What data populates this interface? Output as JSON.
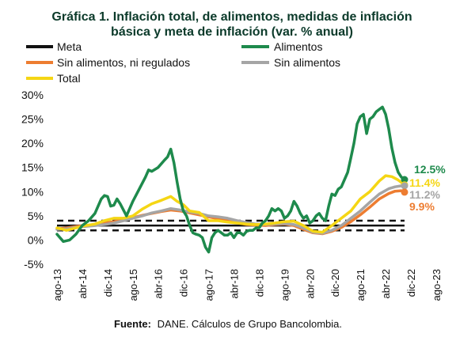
{
  "chart_data": {
    "type": "line",
    "title_line1": "Gráfica 1. Inflación total, de alimentos, medidas de inflación",
    "title_line2": "básica y meta de inflación (var. % anual)",
    "source_bold": "Fuente:",
    "source_text": "DANE. Cálculos de Grupo Bancolombia.",
    "ylim": [
      -5,
      30
    ],
    "y_ticks": [
      -5,
      0,
      5,
      10,
      15,
      20,
      25,
      30
    ],
    "y_tick_labels": [
      "-5%",
      "0%",
      "5%",
      "10%",
      "15%",
      "20%",
      "25%",
      "30%"
    ],
    "x_tick_labels": [
      "ago-13",
      "abr-14",
      "dic-14",
      "ago-15",
      "abr-16",
      "dic-16",
      "ago-17",
      "abr-18",
      "dic-18",
      "ago-19",
      "abr-20",
      "dic-20",
      "ago-21",
      "abr-22",
      "dic-22",
      "ago-23"
    ],
    "target_band": {
      "center": 3,
      "lower": 2,
      "upper": 4
    },
    "legend": [
      {
        "key": "meta",
        "label": "Meta"
      },
      {
        "key": "alimentos",
        "label": "Alimentos"
      },
      {
        "key": "sin_alim_reg",
        "label": "Sin alimentos, ni regulados"
      },
      {
        "key": "sin_alim",
        "label": "Sin alimentos"
      },
      {
        "key": "total",
        "label": "Total"
      }
    ],
    "series": [
      {
        "key": "alimentos",
        "name": "Alimentos",
        "color": "#1e8a4c",
        "end_label": "12.5%",
        "values": [
          [
            0,
            1.2
          ],
          [
            2,
            -0.3
          ],
          [
            4,
            0.0
          ],
          [
            6,
            1.2
          ],
          [
            8,
            3.0
          ],
          [
            10,
            4.0
          ],
          [
            12,
            5.5
          ],
          [
            14,
            8.5
          ],
          [
            15,
            9.2
          ],
          [
            16,
            9.0
          ],
          [
            17,
            7.0
          ],
          [
            18,
            7.2
          ],
          [
            19,
            8.5
          ],
          [
            20,
            7.5
          ],
          [
            22,
            5.0
          ],
          [
            23,
            6.5
          ],
          [
            24,
            8.0
          ],
          [
            26,
            10.5
          ],
          [
            28,
            13.0
          ],
          [
            29,
            14.5
          ],
          [
            30,
            14.2
          ],
          [
            32,
            15.0
          ],
          [
            34,
            16.5
          ],
          [
            35,
            17.2
          ],
          [
            36,
            18.8
          ],
          [
            37,
            16.0
          ],
          [
            38,
            12.0
          ],
          [
            39,
            8.5
          ],
          [
            40,
            6.0
          ],
          [
            41,
            5.0
          ],
          [
            42,
            3.0
          ],
          [
            43,
            1.5
          ],
          [
            44,
            1.2
          ],
          [
            45,
            1.0
          ],
          [
            46,
            0.5
          ],
          [
            47,
            -1.5
          ],
          [
            48,
            -2.5
          ],
          [
            49,
            0.5
          ],
          [
            50,
            1.5
          ],
          [
            51,
            2.0
          ],
          [
            52,
            1.5
          ],
          [
            53,
            1.0
          ],
          [
            54,
            1.0
          ],
          [
            55,
            1.5
          ],
          [
            56,
            0.5
          ],
          [
            57,
            1.5
          ],
          [
            58,
            1.5
          ],
          [
            59,
            1.0
          ],
          [
            60,
            1.8
          ],
          [
            61,
            2.0
          ],
          [
            62,
            2.0
          ],
          [
            63,
            2.5
          ],
          [
            64,
            2.5
          ],
          [
            65,
            3.5
          ],
          [
            66,
            4.0
          ],
          [
            67,
            5.0
          ],
          [
            68,
            6.5
          ],
          [
            69,
            6.0
          ],
          [
            70,
            6.5
          ],
          [
            71,
            6.0
          ],
          [
            72,
            4.5
          ],
          [
            73,
            5.0
          ],
          [
            74,
            6.0
          ],
          [
            75,
            8.0
          ],
          [
            76,
            7.0
          ],
          [
            77,
            5.5
          ],
          [
            78,
            4.5
          ],
          [
            79,
            5.0
          ],
          [
            80,
            3.5
          ],
          [
            81,
            4.0
          ],
          [
            82,
            5.0
          ],
          [
            83,
            5.5
          ],
          [
            84,
            4.5
          ],
          [
            85,
            4.0
          ],
          [
            86,
            7.0
          ],
          [
            87,
            9.5
          ],
          [
            88,
            9.2
          ],
          [
            89,
            10.5
          ],
          [
            90,
            11.0
          ],
          [
            91,
            12.5
          ],
          [
            92,
            14.0
          ],
          [
            93,
            17.0
          ],
          [
            94,
            20.0
          ],
          [
            95,
            24.0
          ],
          [
            96,
            25.5
          ],
          [
            97,
            26.0
          ],
          [
            98,
            22.0
          ],
          [
            99,
            25.0
          ],
          [
            100,
            25.5
          ],
          [
            101,
            26.5
          ],
          [
            102,
            27.0
          ],
          [
            103,
            27.5
          ],
          [
            104,
            26.0
          ],
          [
            105,
            23.0
          ],
          [
            106,
            19.0
          ],
          [
            107,
            16.0
          ],
          [
            108,
            14.0
          ],
          [
            109,
            13.0
          ],
          [
            110,
            12.5
          ]
        ]
      },
      {
        "key": "total",
        "name": "Total",
        "color": "#f5d614",
        "end_label": "11.4%",
        "values": [
          [
            0,
            2.5
          ],
          [
            3,
            2.0
          ],
          [
            6,
            2.5
          ],
          [
            9,
            3.0
          ],
          [
            12,
            3.3
          ],
          [
            15,
            4.0
          ],
          [
            18,
            4.5
          ],
          [
            21,
            4.5
          ],
          [
            24,
            5.0
          ],
          [
            27,
            6.4
          ],
          [
            30,
            7.5
          ],
          [
            33,
            8.2
          ],
          [
            36,
            9.0
          ],
          [
            38,
            8.0
          ],
          [
            40,
            7.3
          ],
          [
            42,
            6.0
          ],
          [
            45,
            5.7
          ],
          [
            48,
            4.0
          ],
          [
            51,
            4.0
          ],
          [
            54,
            3.7
          ],
          [
            57,
            3.5
          ],
          [
            60,
            3.3
          ],
          [
            63,
            3.2
          ],
          [
            66,
            3.3
          ],
          [
            69,
            3.5
          ],
          [
            72,
            3.8
          ],
          [
            75,
            3.9
          ],
          [
            78,
            3.0
          ],
          [
            81,
            1.8
          ],
          [
            84,
            1.6
          ],
          [
            87,
            3.0
          ],
          [
            90,
            4.5
          ],
          [
            93,
            6.0
          ],
          [
            96,
            8.5
          ],
          [
            99,
            10.0
          ],
          [
            102,
            12.2
          ],
          [
            104,
            13.3
          ],
          [
            106,
            13.1
          ],
          [
            108,
            12.4
          ],
          [
            110,
            11.4
          ]
        ]
      },
      {
        "key": "sin_alim",
        "name": "Sin alimentos",
        "color": "#a5a5a5",
        "end_label": "11.2%",
        "values": [
          [
            0,
            2.2
          ],
          [
            3,
            2.3
          ],
          [
            6,
            2.6
          ],
          [
            9,
            2.8
          ],
          [
            12,
            3.0
          ],
          [
            15,
            3.2
          ],
          [
            18,
            3.5
          ],
          [
            21,
            4.0
          ],
          [
            24,
            4.5
          ],
          [
            27,
            5.0
          ],
          [
            30,
            5.6
          ],
          [
            33,
            6.0
          ],
          [
            36,
            6.5
          ],
          [
            39,
            6.2
          ],
          [
            42,
            5.8
          ],
          [
            45,
            5.5
          ],
          [
            48,
            5.0
          ],
          [
            51,
            4.8
          ],
          [
            54,
            4.5
          ],
          [
            57,
            4.0
          ],
          [
            60,
            3.6
          ],
          [
            63,
            3.3
          ],
          [
            66,
            3.2
          ],
          [
            69,
            3.3
          ],
          [
            72,
            3.4
          ],
          [
            75,
            3.2
          ],
          [
            78,
            2.5
          ],
          [
            81,
            1.6
          ],
          [
            84,
            1.4
          ],
          [
            87,
            2.0
          ],
          [
            90,
            3.0
          ],
          [
            93,
            4.5
          ],
          [
            96,
            6.0
          ],
          [
            99,
            7.8
          ],
          [
            102,
            9.5
          ],
          [
            105,
            10.6
          ],
          [
            107,
            11.0
          ],
          [
            109,
            11.2
          ],
          [
            110,
            11.2
          ]
        ]
      },
      {
        "key": "sin_alim_reg",
        "name": "Sin alimentos, ni regulados",
        "color": "#ed7d31",
        "end_label": "9.9%",
        "values": [
          [
            0,
            2.3
          ],
          [
            3,
            2.5
          ],
          [
            6,
            2.8
          ],
          [
            9,
            3.0
          ],
          [
            12,
            3.2
          ],
          [
            15,
            3.5
          ],
          [
            18,
            3.8
          ],
          [
            21,
            4.2
          ],
          [
            24,
            4.6
          ],
          [
            27,
            5.1
          ],
          [
            30,
            5.5
          ],
          [
            33,
            5.9
          ],
          [
            36,
            6.2
          ],
          [
            39,
            6.0
          ],
          [
            42,
            5.6
          ],
          [
            45,
            5.2
          ],
          [
            48,
            4.8
          ],
          [
            51,
            4.4
          ],
          [
            54,
            4.0
          ],
          [
            57,
            3.6
          ],
          [
            60,
            3.2
          ],
          [
            63,
            3.1
          ],
          [
            66,
            3.0
          ],
          [
            69,
            3.2
          ],
          [
            72,
            3.3
          ],
          [
            75,
            3.0
          ],
          [
            78,
            2.2
          ],
          [
            81,
            1.5
          ],
          [
            84,
            1.3
          ],
          [
            87,
            1.8
          ],
          [
            90,
            2.6
          ],
          [
            93,
            3.8
          ],
          [
            96,
            5.2
          ],
          [
            99,
            6.8
          ],
          [
            102,
            8.5
          ],
          [
            105,
            9.6
          ],
          [
            107,
            10.1
          ],
          [
            109,
            10.2
          ],
          [
            110,
            9.9
          ]
        ]
      }
    ]
  }
}
